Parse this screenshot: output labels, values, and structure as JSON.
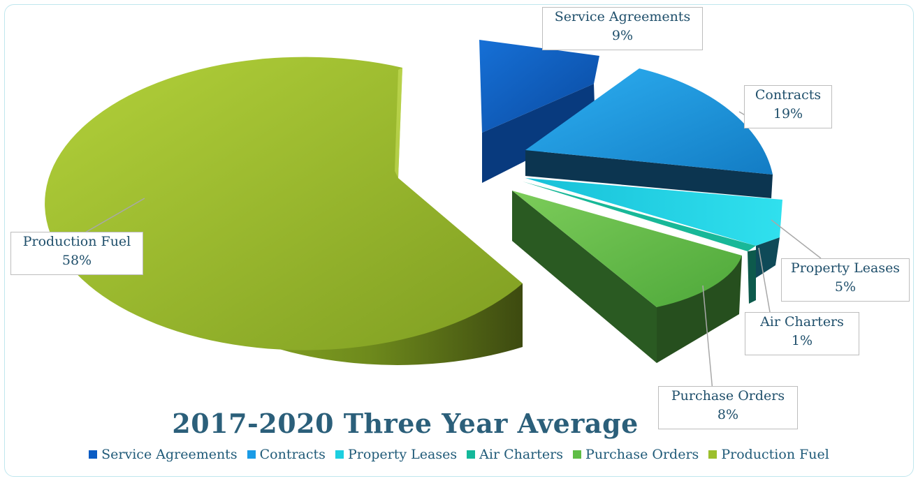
{
  "chart_data": {
    "type": "pie",
    "title": "2017-2020  Three Year Average",
    "legend_position": "bottom",
    "slices": [
      {
        "label": "Service Agreements",
        "value": 9,
        "display": "9%",
        "color": "#0a5cc4"
      },
      {
        "label": "Contracts",
        "value": 19,
        "display": "19%",
        "color": "#1a9be6"
      },
      {
        "label": "Property Leases",
        "value": 5,
        "display": "5%",
        "color": "#1ccfe0"
      },
      {
        "label": "Air Charters",
        "value": 1,
        "display": "1%",
        "color": "#14b89a"
      },
      {
        "label": "Purchase Orders",
        "value": 8,
        "display": "8%",
        "color": "#5fbd45"
      },
      {
        "label": "Production Fuel",
        "value": 58,
        "display": "58%",
        "color": "#9cbf2c"
      }
    ]
  }
}
